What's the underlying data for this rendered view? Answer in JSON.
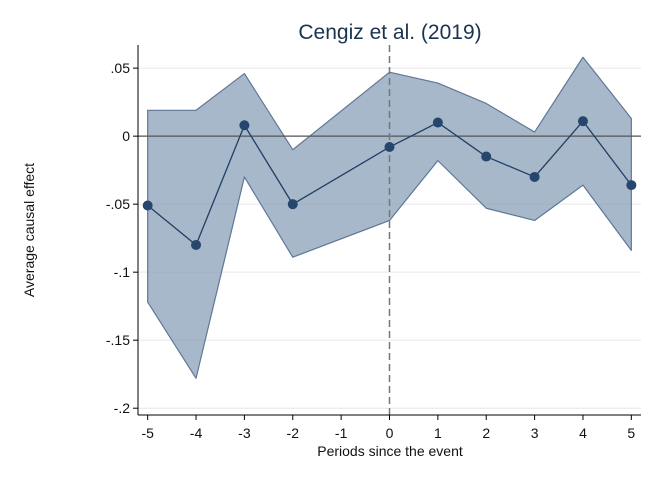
{
  "chart_data": {
    "type": "line",
    "title": "Cengiz et al. (2019)",
    "xlabel": "Periods since the event",
    "ylabel": "Average causal effect",
    "x": [
      -5,
      -4,
      -3,
      -2,
      -1,
      0,
      1,
      2,
      3,
      4,
      5
    ],
    "series": [
      {
        "values": [
          -0.051,
          -0.08,
          0.008,
          -0.05,
          null,
          -0.008,
          0.01,
          -0.015,
          -0.03,
          0.011,
          -0.036
        ],
        "ci_lower": [
          -0.122,
          -0.178,
          -0.03,
          -0.089,
          null,
          -0.062,
          -0.018,
          -0.053,
          -0.062,
          -0.036,
          -0.084
        ],
        "ci_upper": [
          0.019,
          0.019,
          0.046,
          -0.01,
          null,
          0.047,
          0.039,
          0.024,
          0.003,
          0.058,
          0.013
        ]
      }
    ],
    "xlim": [
      -5.2,
      5.2
    ],
    "ylim": [
      -0.205,
      0.067
    ],
    "xticks": [
      -5,
      -4,
      -3,
      -2,
      -1,
      0,
      1,
      2,
      3,
      4,
      5
    ],
    "xtick_labels": [
      "-5",
      "-4",
      "-3",
      "-2",
      "-1",
      "0",
      "1",
      "2",
      "3",
      "4",
      "5"
    ],
    "yticks": [
      0.05,
      0,
      -0.05,
      -0.1,
      -0.15,
      -0.2
    ],
    "ytick_labels": [
      ".05",
      "0",
      "-.05",
      "-.1",
      "-.15",
      "-.2"
    ],
    "reference_lines": {
      "horizontal_y": 0,
      "vertical_x": 0
    },
    "grid": true,
    "colors": {
      "line": "#1f3f63",
      "marker": "#26466d",
      "band_fill": "#8aa0b8",
      "band_edge": "#5f7896",
      "grid": "#e6e6e6",
      "ref_line": "#555555",
      "vref_line": "#777777",
      "title": "#1a3350"
    }
  }
}
